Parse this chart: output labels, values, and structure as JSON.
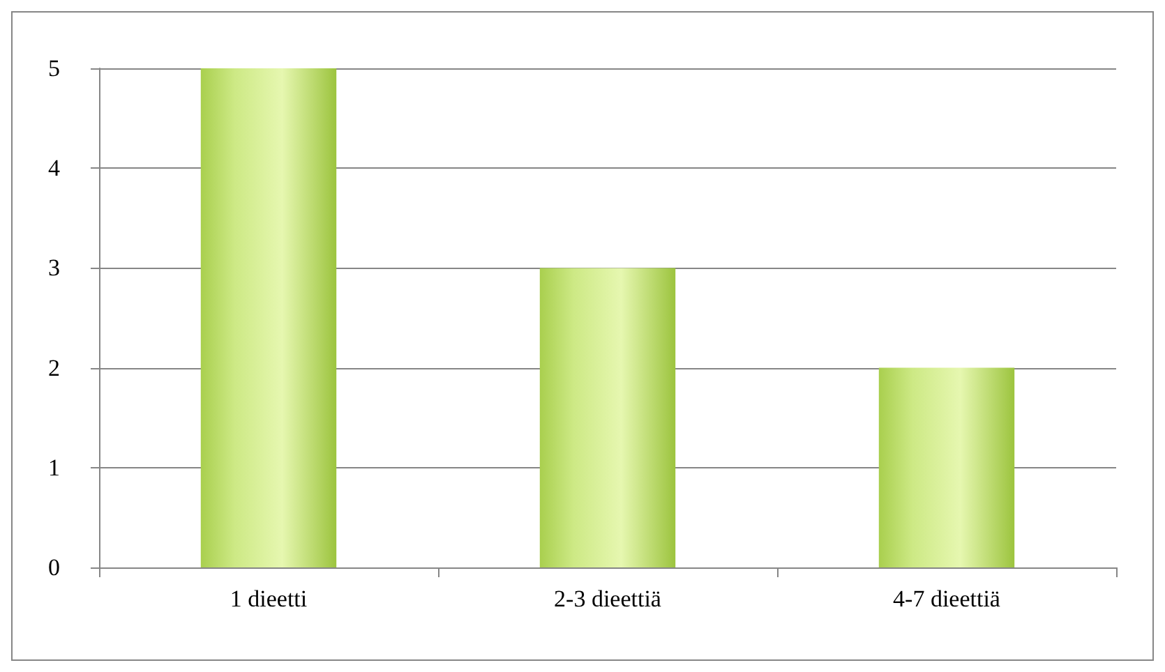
{
  "chart_data": {
    "type": "bar",
    "categories": [
      "1 dieetti",
      "2-3 dieettiä",
      "4-7 dieettiä"
    ],
    "values": [
      5,
      3,
      2
    ],
    "color": "#cde985",
    "ylim": [
      0,
      5
    ],
    "yticks": [
      0,
      1,
      2,
      3,
      4,
      5
    ],
    "grid": "y"
  }
}
